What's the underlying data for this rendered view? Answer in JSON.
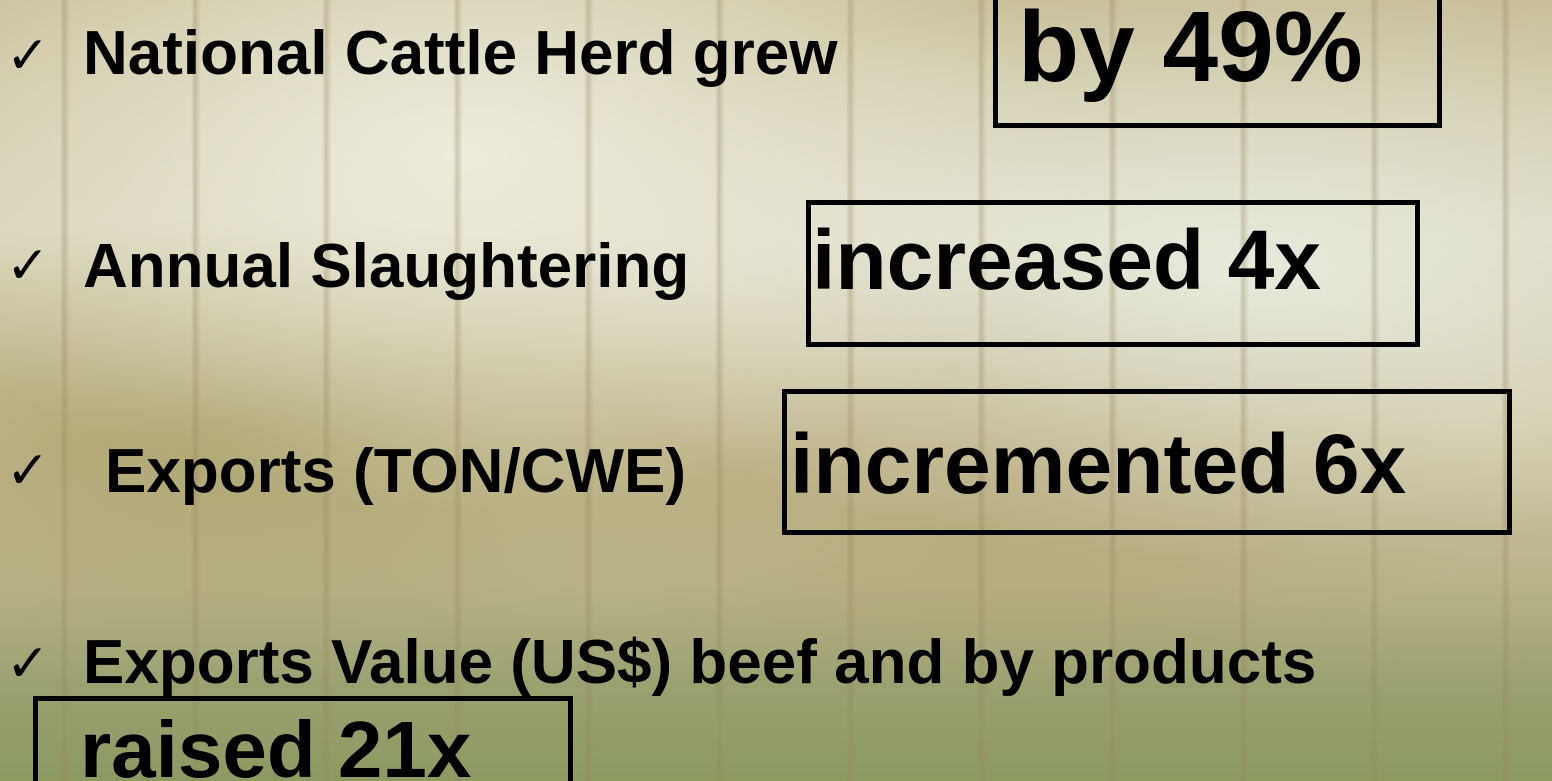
{
  "items": [
    {
      "check": "✓",
      "text": "National Cattle Herd grew",
      "highlight": "by 49%"
    },
    {
      "check": "✓",
      "text": "Annual Slaughtering",
      "highlight": "increased 4x"
    },
    {
      "check": "✓",
      "text": "Exports (TON/CWE)",
      "highlight": "incremented 6x"
    },
    {
      "check": "✓",
      "text": "Exports Value (US$) beef and by products",
      "highlight": "raised 21x"
    }
  ]
}
